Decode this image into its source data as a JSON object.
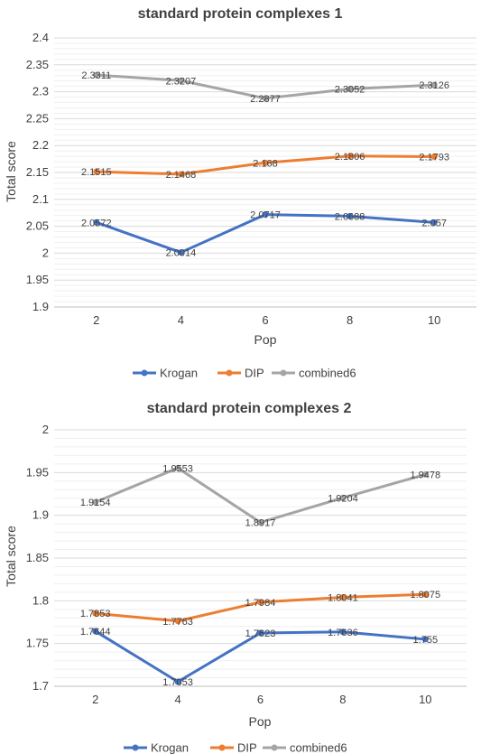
{
  "colors": {
    "Krogan": "#4472C4",
    "DIP": "#ED7D31",
    "combined6": "#A5A5A5",
    "grid": "#d9d9d9",
    "axis": "#bfbfbf",
    "text": "#404040"
  },
  "chart_data": [
    {
      "type": "line",
      "title": "standard  protein complexes 1",
      "xlabel": "Pop",
      "ylabel": "Total score",
      "x": [
        "2",
        "4",
        "6",
        "8",
        "10"
      ],
      "ylim": [
        1.9,
        2.4
      ],
      "ytick_step": 0.05,
      "yticks": [
        "1.9",
        "1.95",
        "2",
        "2.05",
        "2.1",
        "2.15",
        "2.2",
        "2.25",
        "2.3",
        "2.35",
        "2.4"
      ],
      "grid": true,
      "legend_position": "bottom",
      "series": [
        {
          "name": "Krogan",
          "values": [
            2.0572,
            2.0014,
            2.0717,
            2.0688,
            2.057
          ],
          "labels": [
            "2.0572",
            "2.0014",
            "2.0717",
            "2.0688",
            "2.057"
          ]
        },
        {
          "name": "DIP",
          "values": [
            2.1515,
            2.1468,
            2.168,
            2.1806,
            2.1793
          ],
          "labels": [
            "2.1515",
            "2.1468",
            "2.168",
            "2.1806",
            "2.1793"
          ]
        },
        {
          "name": "combined6",
          "values": [
            2.3311,
            2.3207,
            2.2877,
            2.3052,
            2.3126
          ],
          "labels": [
            "2.3311",
            "2.3207",
            "2.2877",
            "2.3052",
            "2.3126"
          ]
        }
      ]
    },
    {
      "type": "line",
      "title": "standard protein complexes 2",
      "xlabel": "Pop",
      "ylabel": "Total score",
      "x": [
        "2",
        "4",
        "6",
        "8",
        "10"
      ],
      "ylim": [
        1.7,
        2.0
      ],
      "ytick_step": 0.05,
      "yticks": [
        "1.7",
        "1.75",
        "1.8",
        "1.85",
        "1.9",
        "1.95",
        "2"
      ],
      "grid": true,
      "legend_position": "bottom",
      "series": [
        {
          "name": "Krogan",
          "values": [
            1.7644,
            1.7053,
            1.7623,
            1.7636,
            1.755
          ],
          "labels": [
            "1.7644",
            "1.7053",
            "1.7623",
            "1.7636",
            "1.755"
          ]
        },
        {
          "name": "DIP",
          "values": [
            1.7853,
            1.7763,
            1.7984,
            1.8041,
            1.8075
          ],
          "labels": [
            "1.7853",
            "1.7763",
            "1.7984",
            "1.8041",
            "1.8075"
          ]
        },
        {
          "name": "combined6",
          "values": [
            1.9154,
            1.9553,
            1.8917,
            1.9204,
            1.9478
          ],
          "labels": [
            "1.9154",
            "1.9553",
            "1.8917",
            "1.9204",
            "1.9478"
          ]
        }
      ]
    }
  ]
}
